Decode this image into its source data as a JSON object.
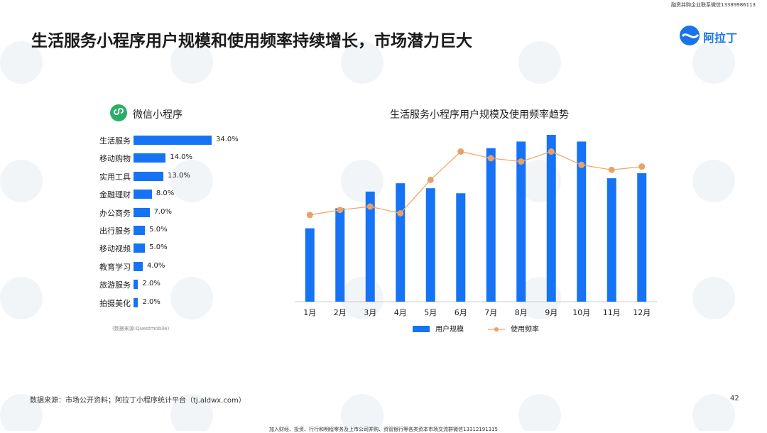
{
  "header": {
    "top_note": "融资并购企业联系微信13389986113",
    "title": "生活服务小程序用户规模和使用频率持续增长，市场潜力巨大",
    "logo_text": "阿拉丁"
  },
  "left_panel": {
    "title": "微信小程序",
    "source": "(数据来源:Questmobile)"
  },
  "chart_data": [
    {
      "type": "bar",
      "orientation": "horizontal",
      "categories": [
        "生活服务",
        "移动购物",
        "实用工具",
        "金融理财",
        "办公商务",
        "出行服务",
        "移动视频",
        "教育学习",
        "旅游服务",
        "拍摄美化"
      ],
      "values": [
        34.0,
        14.0,
        13.0,
        8.0,
        7.0,
        5.0,
        5.0,
        4.0,
        2.0,
        2.0
      ],
      "value_labels": [
        "34.0%",
        "14.0%",
        "13.0%",
        "8.0%",
        "7.0%",
        "5.0%",
        "5.0%",
        "4.0%",
        "2.0%",
        "2.0%"
      ],
      "color": "#1673f5"
    },
    {
      "type": "bar+line",
      "title": "生活服务小程序用户规模及使用频率趋势",
      "categories": [
        "1月",
        "2月",
        "3月",
        "4月",
        "5月",
        "6月",
        "7月",
        "8月",
        "9月",
        "10月",
        "11月",
        "12月"
      ],
      "series": [
        {
          "name": "用户规模",
          "type": "bar",
          "values": [
            44,
            56,
            66,
            71,
            68,
            65,
            92,
            96,
            100,
            96,
            74,
            77
          ],
          "color": "#1673f5"
        },
        {
          "name": "使用频率",
          "type": "line",
          "values": [
            52,
            55,
            57,
            53,
            73,
            90,
            86,
            84,
            90,
            82,
            79,
            81
          ],
          "color": "#f0a868"
        }
      ],
      "ylim": [
        0,
        100
      ]
    }
  ],
  "footer": {
    "source": "数据来源：市场公开资料；阿拉丁小程序统计平台（tj.aldwx.com）",
    "page_number": "42",
    "bottom_note": "加入财经、投资、行行和明程零务及上市公司并购、资管银行等各类资本市场交流群微信13312191315"
  }
}
